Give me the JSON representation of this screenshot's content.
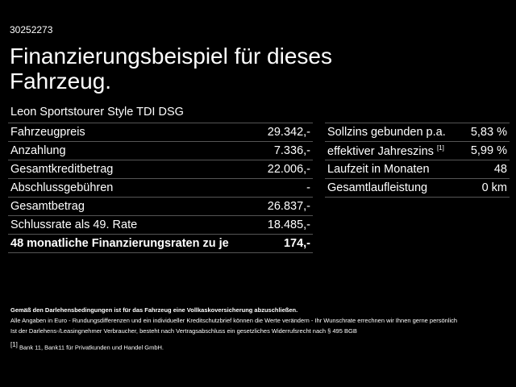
{
  "id": "30252273",
  "title": "Finanzierungsbeispiel für dieses Fahrzeug.",
  "model": "Leon Sportstourer Style TDI DSG",
  "left_table": [
    {
      "label": "Fahrzeugpreis",
      "value": "29.342,-"
    },
    {
      "label": "Anzahlung",
      "value": "7.336,-"
    },
    {
      "label": "Gesamtkreditbetrag",
      "value": "22.006,-"
    },
    {
      "label": "Abschlussgebühren",
      "value": "-"
    },
    {
      "label": "Gesamtbetrag",
      "value": "26.837,-"
    },
    {
      "label": "Schlussrate als 49. Rate",
      "value": "18.485,-"
    },
    {
      "label": "48 monatliche Finanzierungsraten zu je",
      "value": "174,-"
    }
  ],
  "right_table": [
    {
      "label": "Sollzins gebunden p.a.",
      "sup": "",
      "value": "5,83 %"
    },
    {
      "label": "effektiver Jahreszins",
      "sup": "[1]",
      "value": "5,99 %"
    },
    {
      "label": "Laufzeit in Monaten",
      "sup": "",
      "value": "48"
    },
    {
      "label": "Gesamtlaufleistung",
      "sup": "",
      "value": "0 km"
    }
  ],
  "notes": {
    "insurance": "Gemäß den Darlehensbedingungen ist für das Fahrzeug eine Vollkaskoversicherung abzuschließen.",
    "line1": "Alle Angaben in Euro - Rundungsdifferenzen und ein individueller Kreditschutzbrief können die Werte verändern - Ihr Wunschrate errechnen wir Ihnen gerne persönlich",
    "line2": "Ist der Darlehens-/Leasingnehmer Verbraucher, besteht nach Vertragsabschluss ein gesetzliches Widerrufsrecht nach § 495 BGB",
    "footnote_mark": "[1]",
    "footnote": "Bank 11, Bank11 für Privatkunden und Handel GmbH."
  }
}
